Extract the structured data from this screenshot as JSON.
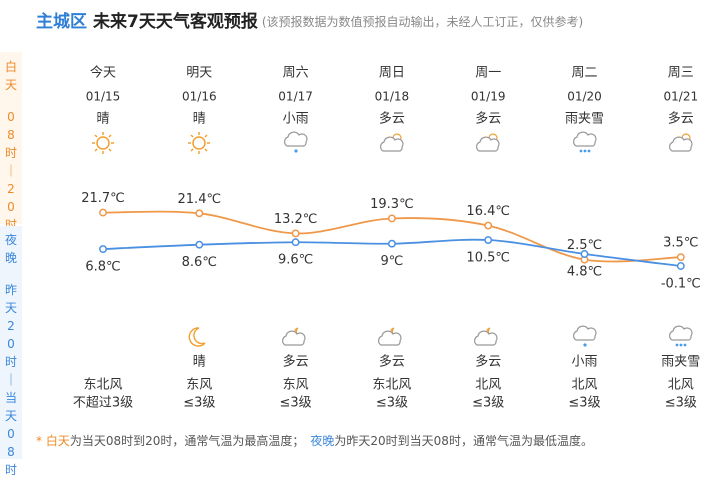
{
  "header": {
    "location": "主城区",
    "title": "未来7天天气客观预报",
    "note": "(该预报数据为数值预报自动输出，未经人工订正，仅供参考)"
  },
  "side_labels": {
    "day": "白天",
    "day_hours": "08时｜20时",
    "night": "夜晚",
    "night_hours": "昨天20时｜当天08时"
  },
  "days": [
    {
      "day": "今天",
      "date": "01/15",
      "day_weather": "晴",
      "day_high": 21.7,
      "day_high_label": "21.7℃",
      "night_low": 6.8,
      "night_low_label": "6.8℃",
      "night_weather": null,
      "wind_dir": "东北风",
      "wind_level": "不超过3级"
    },
    {
      "day": "明天",
      "date": "01/16",
      "day_weather": "晴",
      "day_high": 21.4,
      "day_high_label": "21.4℃",
      "night_low": 8.6,
      "night_low_label": "8.6℃",
      "night_weather": "晴",
      "wind_dir": "东风",
      "wind_level": "≤3级"
    },
    {
      "day": "周六",
      "date": "01/17",
      "day_weather": "小雨",
      "day_high": 13.2,
      "day_high_label": "13.2℃",
      "night_low": 9.6,
      "night_low_label": "9.6℃",
      "night_weather": "多云",
      "wind_dir": "东风",
      "wind_level": "≤3级"
    },
    {
      "day": "周日",
      "date": "01/18",
      "day_weather": "多云",
      "day_high": 19.3,
      "day_high_label": "19.3℃",
      "night_low": 9,
      "night_low_label": "9℃",
      "night_weather": "多云",
      "wind_dir": "东北风",
      "wind_level": "≤3级"
    },
    {
      "day": "周一",
      "date": "01/19",
      "day_weather": "多云",
      "day_high": 16.4,
      "day_high_label": "16.4℃",
      "night_low": 10.5,
      "night_low_label": "10.5℃",
      "night_weather": "多云",
      "wind_dir": "北风",
      "wind_level": "≤3级"
    },
    {
      "day": "周二",
      "date": "01/20",
      "day_weather": "雨夹雪",
      "day_high": 2.5,
      "day_high_label": "2.5℃",
      "night_low": 4.8,
      "night_low_label": "4.8℃",
      "night_weather": "小雨",
      "wind_dir": "北风",
      "wind_level": "≤3级"
    },
    {
      "day": "周三",
      "date": "01/21",
      "day_weather": "多云",
      "day_high": 3.5,
      "day_high_label": "3.5℃",
      "night_low": -0.1,
      "night_low_label": "-0.1℃",
      "night_weather": "雨夹雪",
      "wind_dir": "北风",
      "wind_level": "≤3级"
    }
  ],
  "footer": {
    "star": "* ",
    "day": "白天",
    "day_text": "为当天08时到20时，通常气温为最高温度；",
    "night": "夜晚",
    "night_text": "为昨天20时到当天08时，通常气温为最低温度。"
  }
}
